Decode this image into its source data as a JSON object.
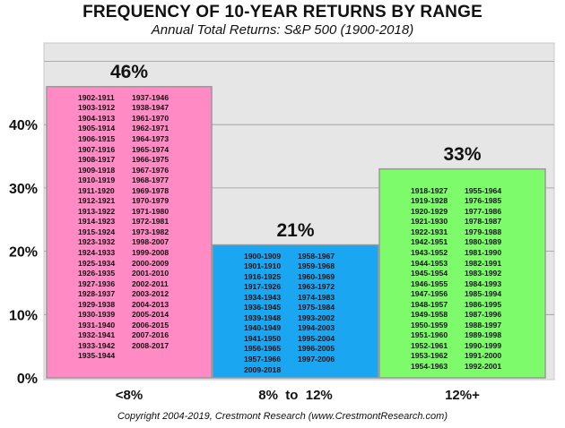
{
  "chart_data": {
    "type": "bar",
    "title": "FREQUENCY OF 10-YEAR RETURNS BY RANGE",
    "subtitle": "Annual Total Returns: S&P 500  (1900-2018)",
    "categories": [
      "<8%",
      "8%  to  12%",
      "12%+"
    ],
    "values": [
      46,
      21,
      33
    ],
    "value_labels": [
      "46%",
      "21%",
      "33%"
    ],
    "ylim": [
      0,
      50
    ],
    "yticks": [
      0,
      10,
      20,
      30,
      40
    ],
    "ytick_labels": [
      "0%",
      "10%",
      "20%",
      "30%",
      "40%"
    ],
    "grid": true,
    "bar_colors": [
      "#ff8ac4",
      "#1aa6f0",
      "#7dfb6a"
    ],
    "bar_periods": [
      [
        "1902-1911",
        "1903-1912",
        "1904-1913",
        "1905-1914",
        "1906-1915",
        "1907-1916",
        "1908-1917",
        "1909-1918",
        "1910-1919",
        "1911-1920",
        "1912-1921",
        "1913-1922",
        "1914-1923",
        "1915-1924",
        "1923-1932",
        "1924-1933",
        "1925-1934",
        "1926-1935",
        "1927-1936",
        "1928-1937",
        "1929-1938",
        "1930-1939",
        "1931-1940",
        "1932-1941",
        "1933-1942",
        "1935-1944",
        "1937-1946",
        "1938-1947",
        "1961-1970",
        "1962-1971",
        "1964-1973",
        "1965-1974",
        "1966-1975",
        "1967-1976",
        "1968-1977",
        "1969-1978",
        "1970-1979",
        "1971-1980",
        "1972-1981",
        "1973-1982",
        "1998-2007",
        "1999-2008",
        "2000-2009",
        "2001-2010",
        "2002-2011",
        "2003-2012",
        "2004-2013",
        "2005-2014",
        "2006-2015",
        "2007-2016",
        "2008-2017"
      ],
      [
        "1900-1909",
        "1901-1910",
        "1916-1925",
        "1917-1926",
        "1934-1943",
        "1936-1945",
        "1939-1948",
        "1940-1949",
        "1941-1950",
        "1956-1965",
        "1957-1966",
        "2009-2018",
        "1958-1967",
        "1959-1968",
        "1960-1969",
        "1963-1972",
        "1974-1983",
        "1975-1984",
        "1993-2002",
        "1994-2003",
        "1995-2004",
        "1996-2005",
        "1997-2006"
      ],
      [
        "1918-1927",
        "1919-1928",
        "1920-1929",
        "1921-1930",
        "1922-1931",
        "1942-1951",
        "1943-1952",
        "1944-1953",
        "1945-1954",
        "1946-1955",
        "1947-1956",
        "1948-1957",
        "1949-1958",
        "1950-1959",
        "1951-1960",
        "1952-1961",
        "1953-1962",
        "1954-1963",
        "1955-1964",
        "1976-1985",
        "1977-1986",
        "1978-1987",
        "1979-1988",
        "1980-1989",
        "1981-1990",
        "1982-1991",
        "1983-1992",
        "1984-1993",
        "1985-1994",
        "1986-1995",
        "1987-1996",
        "1988-1997",
        "1989-1998",
        "1990-1999",
        "1991-2000",
        "1992-2001"
      ]
    ],
    "bar_period_split": [
      26,
      12,
      18
    ]
  },
  "footer": "Copyright 2004-2019, Crestmont Research (www.CrestmontResearch.com)",
  "colors": {
    "plot_background": "#e6e6e6",
    "gridline": "#ffffff",
    "bar_border": "#999999"
  }
}
